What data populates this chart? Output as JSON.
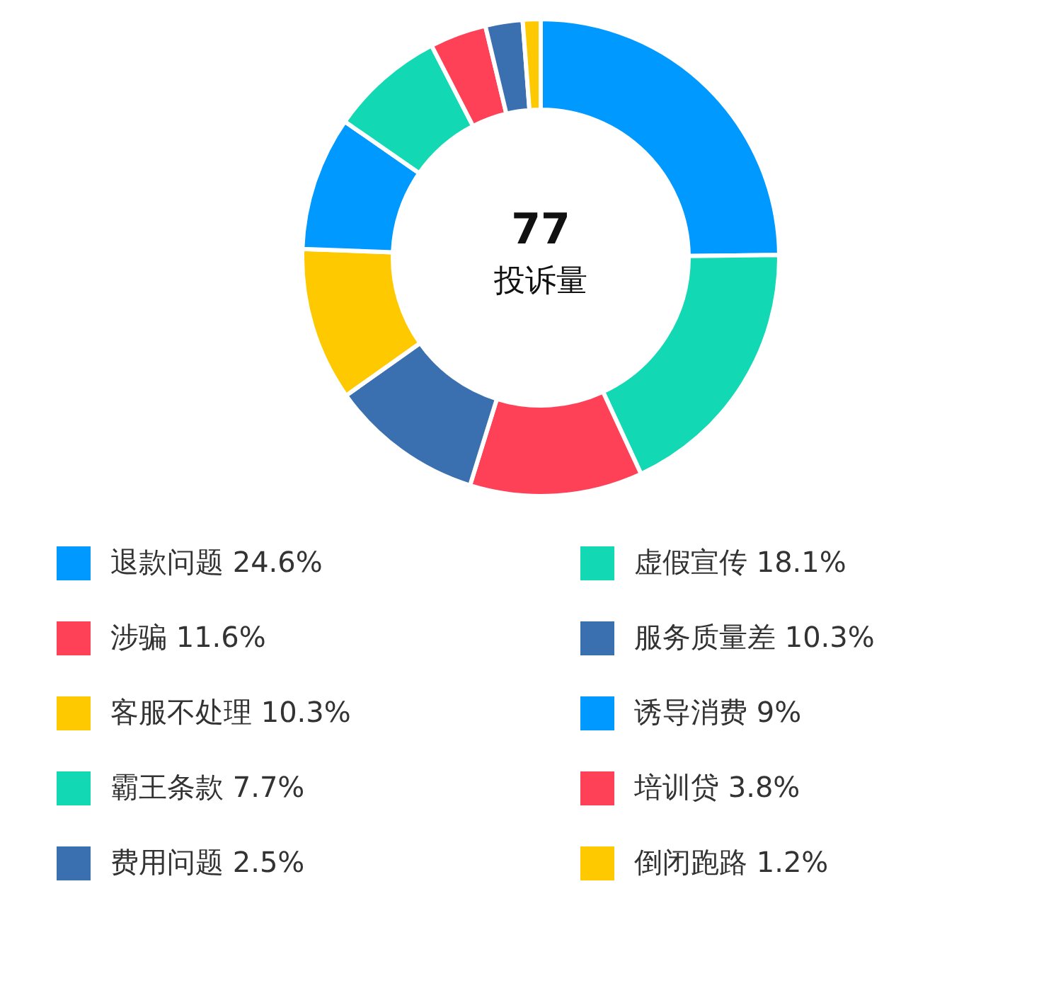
{
  "chart_data": {
    "type": "donut",
    "categories": [
      "退款问题 24.6%",
      "虚假宣传 18.1%",
      "涉骗 11.6%",
      "服务质量差 10.3%",
      "客服不处理 10.3%",
      "诱导消费 9%",
      "霸王条款 7.7%",
      "培训贷 3.8%",
      "费用问题 2.5%",
      "倒闭跑路 1.2%"
    ],
    "values": [
      24.6,
      18.1,
      11.6,
      10.3,
      10.3,
      9,
      7.7,
      3.8,
      2.5,
      1.2
    ],
    "colors": [
      "#0099ff",
      "#12d9b4",
      "#ff4157",
      "#3b70b0",
      "#ffc900",
      "#0099ff",
      "#12d9b4",
      "#ff4157",
      "#3b70b0",
      "#ffc900"
    ],
    "annotations": [
      "77",
      "投诉量"
    ],
    "legend": "bottom"
  }
}
